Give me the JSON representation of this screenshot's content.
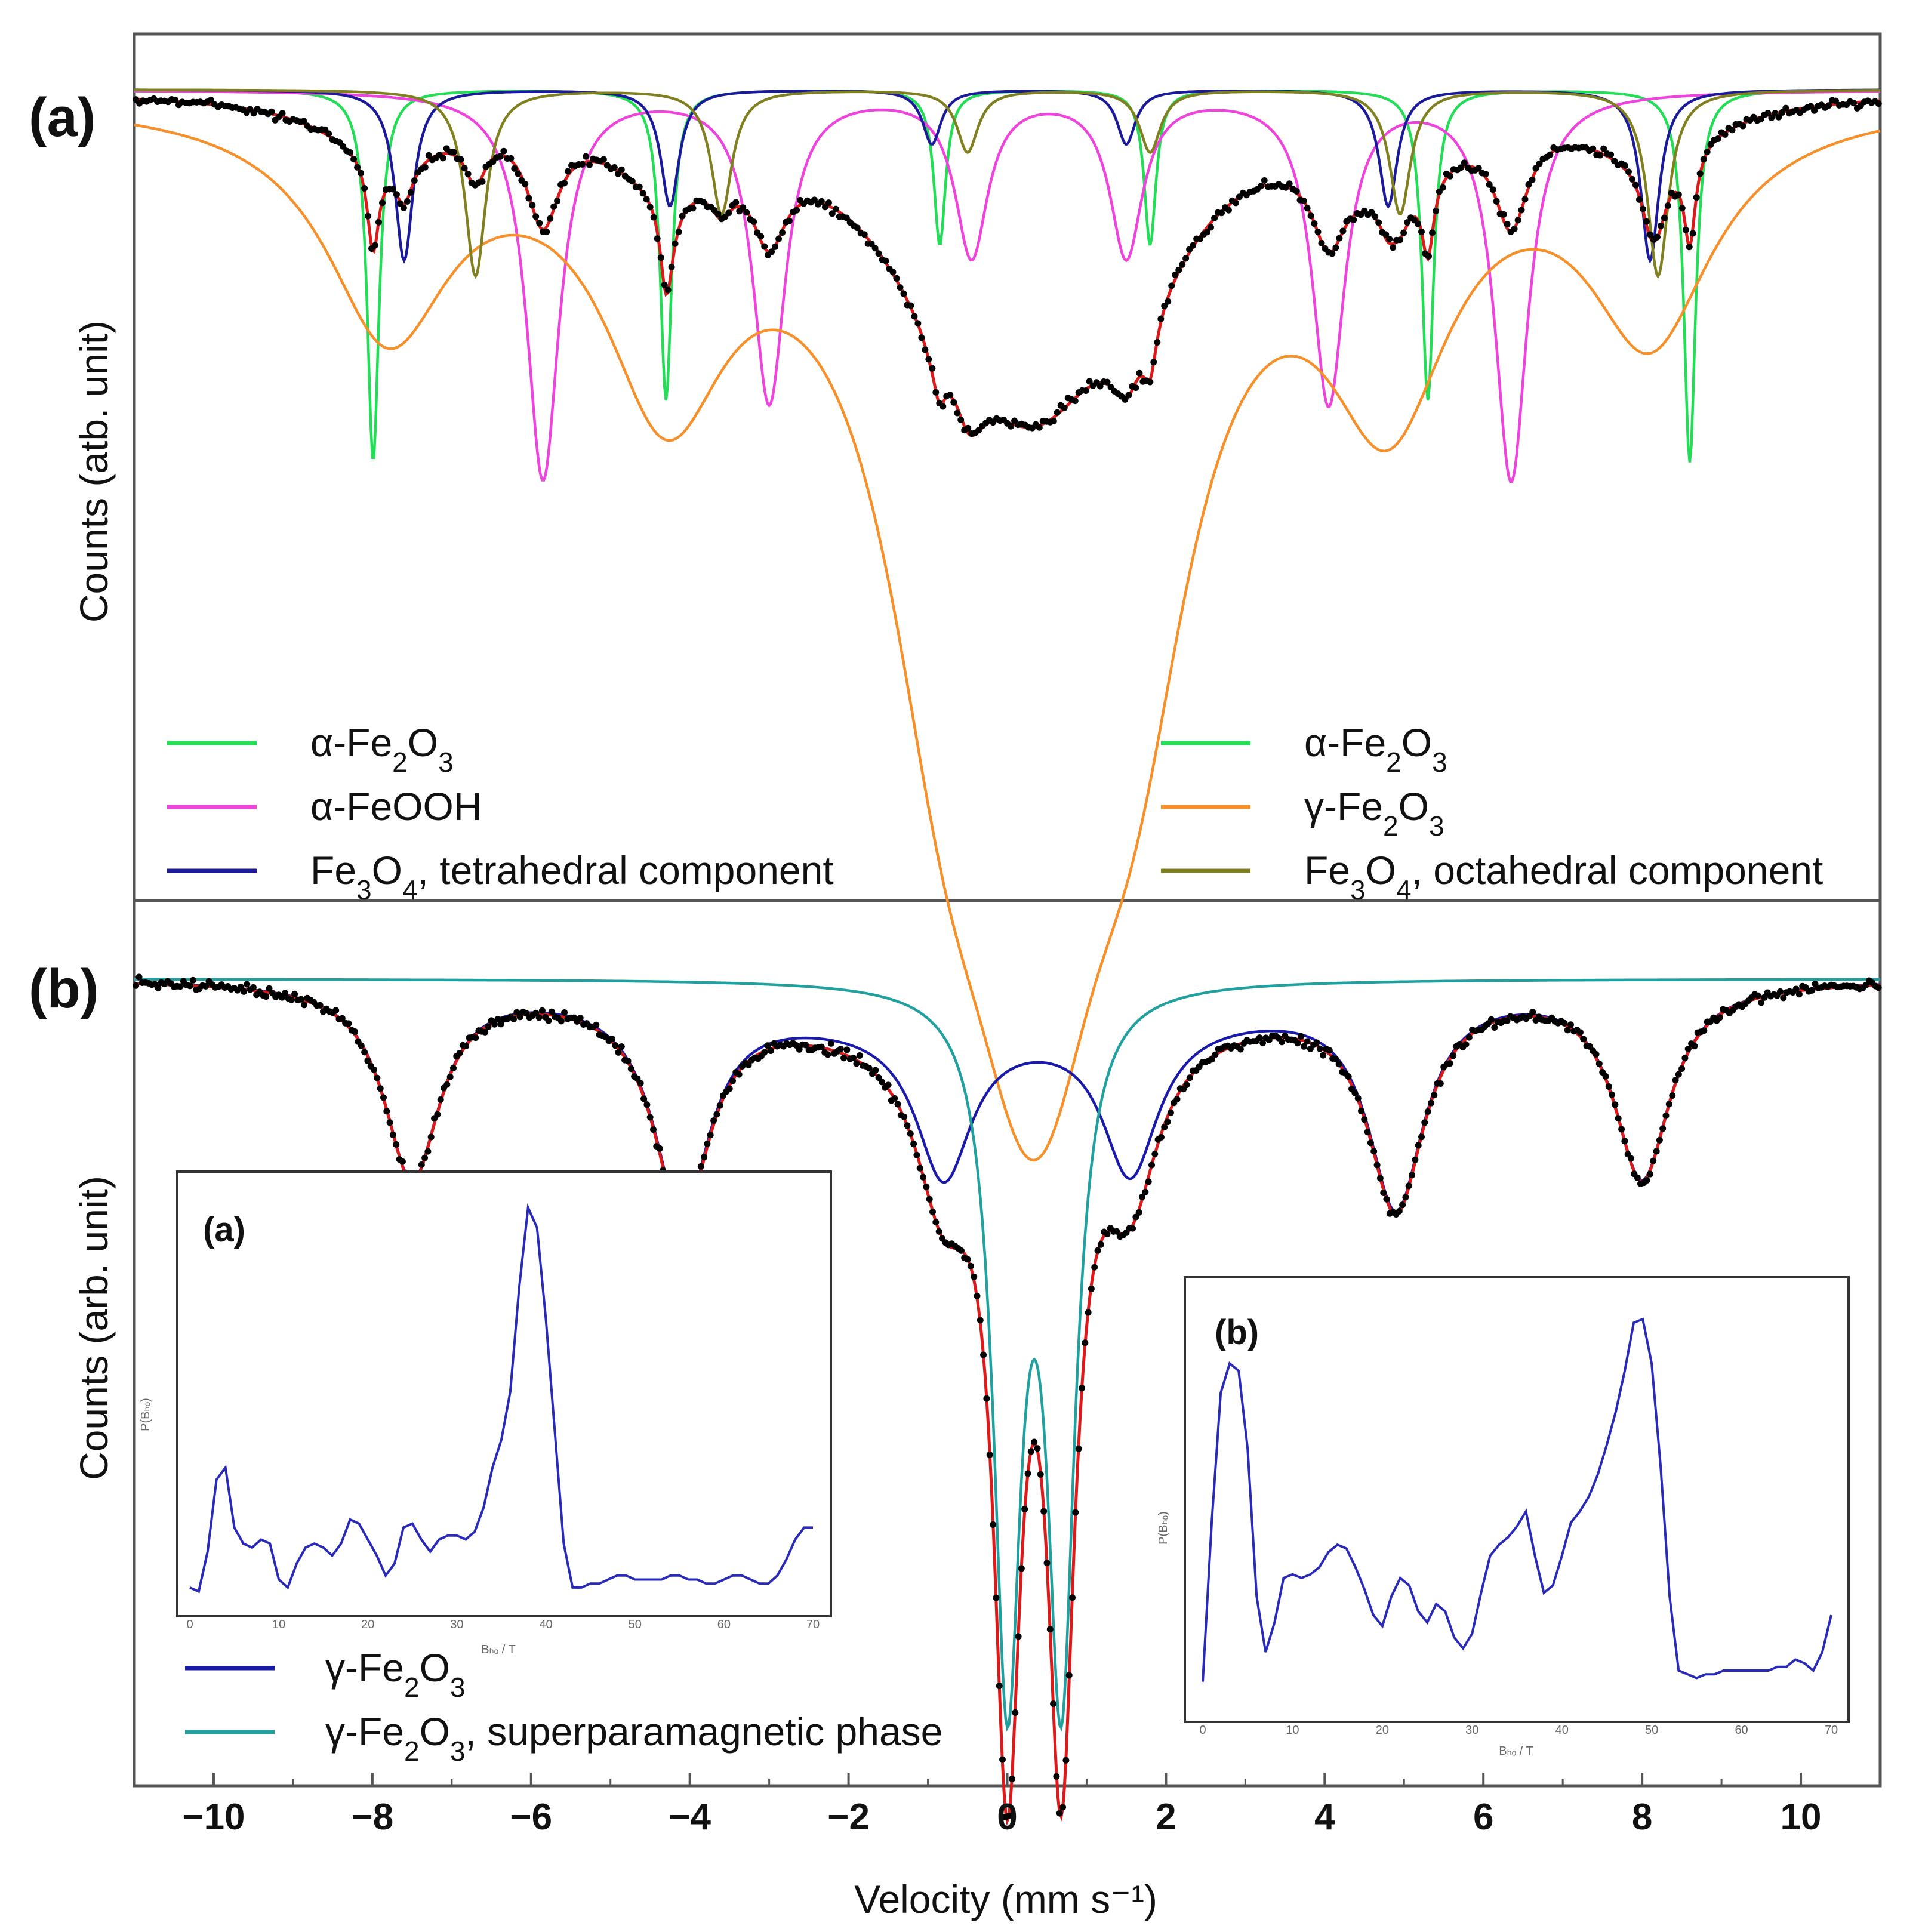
{
  "chart_data": [
    {
      "type": "line",
      "panel_label": "(a)",
      "ylabel": "Counts (atb. unit)",
      "xlabel": "Velocity (mm s⁻¹)",
      "x_range": [
        -11,
        11
      ],
      "x_ticks": [
        -10,
        -8,
        -6,
        -4,
        -2,
        0,
        2,
        4,
        6,
        8,
        10
      ],
      "x_tick_labels": [
        "−10",
        "−8",
        "−6",
        "−4",
        "−2",
        "0",
        "2",
        "4",
        "6",
        "8",
        "10"
      ],
      "y_range": [
        0,
        1
      ],
      "baseline": 0.965,
      "series": [
        {
          "name": "α-Fe₂O₃",
          "color": "#22dd55",
          "width": 0.18,
          "lines": [
            [
              -7.99,
              0.48
            ],
            [
              -4.3,
              0.4
            ],
            [
              -0.85,
              0.2
            ],
            [
              1.8,
              0.2
            ],
            [
              5.3,
              0.4
            ],
            [
              8.6,
              0.48
            ]
          ]
        },
        {
          "name": "α-FeOOH",
          "color": "#ee44dd",
          "width": 0.5,
          "lines": [
            [
              -5.85,
              0.5
            ],
            [
              -3.0,
              0.4
            ],
            [
              -0.45,
              0.21
            ],
            [
              1.5,
              0.21
            ],
            [
              4.05,
              0.4
            ],
            [
              6.35,
              0.5
            ]
          ]
        },
        {
          "name": "Fe₃O₄, tetrahedral component",
          "color": "#1a1a9a",
          "width": 0.28,
          "lines": [
            [
              -7.6,
              0.22
            ],
            [
              -4.25,
              0.15
            ],
            [
              -0.95,
              0.07
            ],
            [
              1.5,
              0.07
            ],
            [
              4.8,
              0.15
            ],
            [
              8.1,
              0.22
            ]
          ]
        },
        {
          "name": "γ-Fe₂O₃",
          "color": "#f5902a",
          "width": 1.9,
          "lines": [
            [
              -7.8,
              0.28
            ],
            [
              -4.3,
              0.34
            ],
            [
              -0.8,
              0.5
            ],
            [
              0.15,
              0.5
            ],
            [
              0.55,
              0.5
            ],
            [
              1.6,
              0.5
            ],
            [
              4.8,
              0.34
            ],
            [
              8.1,
              0.28
            ]
          ]
        },
        {
          "name": "Fe₃O₄, octahedral component",
          "color": "#808020",
          "width": 0.32,
          "lines": [
            [
              -6.7,
              0.24
            ],
            [
              -3.6,
              0.16
            ],
            [
              -0.5,
              0.08
            ],
            [
              1.8,
              0.08
            ],
            [
              4.95,
              0.16
            ],
            [
              8.2,
              0.24
            ]
          ]
        },
        {
          "name": "total fit",
          "color": "#dd1a1a",
          "role": "fit"
        },
        {
          "name": "experimental data",
          "color": "#000000",
          "role": "points"
        }
      ],
      "legend": {
        "left": [
          {
            "label_main": "α-Fe",
            "sub1": "2",
            "mid": "O",
            "sub2": "3",
            "tail": "",
            "color": "#22dd55"
          },
          {
            "label_main": "α-FeOOH",
            "sub1": "",
            "mid": "",
            "sub2": "",
            "tail": "",
            "color": "#ee44dd"
          },
          {
            "label_main": "Fe",
            "sub1": "3",
            "mid": "O",
            "sub2": "4",
            "tail": ", tetrahedral  component",
            "color": "#1a1a9a"
          }
        ],
        "right": [
          {
            "label_main": "α-Fe",
            "sub1": "2",
            "mid": "O",
            "sub2": "3",
            "tail": "",
            "color": "#22dd55"
          },
          {
            "label_main": "γ-Fe",
            "sub1": "2",
            "mid": "O",
            "sub2": "3",
            "tail": "",
            "color": "#f5902a"
          },
          {
            "label_main": "Fe",
            "sub1": "3",
            "mid": "O",
            "sub2": "4",
            "tail": ", octahedral  component",
            "color": "#808020"
          }
        ]
      }
    },
    {
      "type": "line",
      "panel_label": "(b)",
      "ylabel": "Counts (arb. unit)",
      "x_range": [
        -11,
        11
      ],
      "series": [
        {
          "name": "γ-Fe₂O₃",
          "color": "#1a1aaa",
          "lines": [
            [
              -7.5,
              0.22
            ],
            [
              -4.1,
              0.24
            ],
            [
              -0.8,
              0.17
            ],
            [
              1.55,
              0.17
            ],
            [
              4.9,
              0.24
            ],
            [
              8.0,
              0.22
            ]
          ]
        },
        {
          "name": "γ-Fe₂O₃, superparamagnetic phase",
          "color": "#22a0a0",
          "lines": [
            [
              0.0,
              0.78
            ],
            [
              0.68,
              0.78
            ]
          ]
        },
        {
          "name": "total fit",
          "color": "#dd1a1a",
          "role": "fit"
        },
        {
          "name": "experimental data",
          "color": "#000000",
          "role": "points"
        }
      ],
      "legend": [
        {
          "label_main": "γ-Fe",
          "sub1": "2",
          "mid": "O",
          "sub2": "3",
          "tail": "",
          "color": "#1a1aaa"
        },
        {
          "label_main": "γ-Fe",
          "sub1": "2",
          "mid": "O",
          "sub2": "3",
          "tail": ", superparamagnetic  phase",
          "color": "#22a0a0"
        }
      ]
    },
    {
      "type": "line",
      "inset": true,
      "panel_label": "(a)",
      "xlabel": "Bₕₒ / T",
      "ylabel": "P(Bₕₒ)",
      "x_ticks": [
        "0",
        "10",
        "20",
        "30",
        "40",
        "50",
        "60",
        "70"
      ],
      "x_range": [
        0,
        70
      ],
      "color": "#2a2ab8",
      "x": [
        0,
        1,
        2,
        3,
        4,
        5,
        6,
        7,
        8,
        9,
        10,
        11,
        12,
        13,
        14,
        15,
        16,
        17,
        18,
        19,
        20,
        21,
        22,
        23,
        24,
        25,
        26,
        27,
        28,
        29,
        30,
        31,
        32,
        33,
        34,
        35,
        36,
        37,
        38,
        39,
        40,
        41,
        42,
        43,
        44,
        45,
        46,
        47,
        48,
        49,
        50,
        51,
        52,
        53,
        54,
        55,
        56,
        57,
        58,
        59,
        60,
        61,
        62,
        63,
        64,
        65,
        66,
        67,
        68,
        69,
        70
      ],
      "y": [
        0.03,
        0.02,
        0.12,
        0.3,
        0.33,
        0.18,
        0.14,
        0.13,
        0.15,
        0.14,
        0.05,
        0.03,
        0.09,
        0.13,
        0.14,
        0.13,
        0.11,
        0.14,
        0.2,
        0.19,
        0.15,
        0.11,
        0.06,
        0.09,
        0.18,
        0.19,
        0.15,
        0.12,
        0.15,
        0.16,
        0.16,
        0.15,
        0.17,
        0.23,
        0.33,
        0.4,
        0.52,
        0.78,
        0.98,
        0.93,
        0.7,
        0.42,
        0.14,
        0.03,
        0.03,
        0.04,
        0.04,
        0.05,
        0.06,
        0.06,
        0.05,
        0.05,
        0.05,
        0.05,
        0.06,
        0.06,
        0.05,
        0.05,
        0.04,
        0.04,
        0.05,
        0.06,
        0.06,
        0.05,
        0.04,
        0.04,
        0.06,
        0.1,
        0.15,
        0.18,
        0.18
      ]
    },
    {
      "type": "line",
      "inset": true,
      "panel_label": "(b)",
      "xlabel": "Bₕₒ / T",
      "ylabel": "P(Bₕₒ)",
      "x_ticks": [
        "0",
        "10",
        "20",
        "30",
        "40",
        "50",
        "60",
        "70"
      ],
      "x_range": [
        0,
        70
      ],
      "color": "#2a2ab8",
      "x": [
        0,
        1,
        2,
        3,
        4,
        5,
        6,
        7,
        8,
        9,
        10,
        11,
        12,
        13,
        14,
        15,
        16,
        17,
        18,
        19,
        20,
        21,
        22,
        23,
        24,
        25,
        26,
        27,
        28,
        29,
        30,
        31,
        32,
        33,
        34,
        35,
        36,
        37,
        38,
        39,
        40,
        41,
        42,
        43,
        44,
        45,
        46,
        47,
        48,
        49,
        50,
        51,
        52,
        53,
        54,
        55,
        56,
        57,
        58,
        59,
        60,
        61,
        62,
        63,
        64,
        65,
        66,
        67,
        68,
        69,
        70
      ],
      "y": [
        0.02,
        0.45,
        0.8,
        0.88,
        0.86,
        0.65,
        0.25,
        0.1,
        0.18,
        0.3,
        0.31,
        0.3,
        0.31,
        0.33,
        0.37,
        0.39,
        0.38,
        0.33,
        0.27,
        0.2,
        0.17,
        0.25,
        0.3,
        0.28,
        0.21,
        0.18,
        0.23,
        0.21,
        0.14,
        0.11,
        0.15,
        0.26,
        0.36,
        0.39,
        0.41,
        0.44,
        0.48,
        0.36,
        0.26,
        0.28,
        0.36,
        0.45,
        0.48,
        0.52,
        0.58,
        0.66,
        0.75,
        0.86,
        0.99,
        1.0,
        0.88,
        0.6,
        0.25,
        0.05,
        0.04,
        0.03,
        0.04,
        0.04,
        0.05,
        0.05,
        0.05,
        0.05,
        0.05,
        0.05,
        0.06,
        0.06,
        0.08,
        0.07,
        0.05,
        0.1,
        0.2
      ]
    }
  ]
}
